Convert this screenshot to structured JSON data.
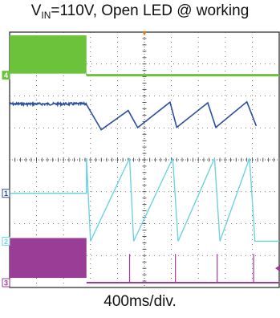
{
  "title": {
    "prefix": "V",
    "subscript": "IN",
    "rest": "=110V, Open LED @ working"
  },
  "chart_data": {
    "type": "line",
    "title": "VIN=110V, Open LED @ working",
    "xlabel": "400ms/div.",
    "x_divisions": 10,
    "y_divisions": 8,
    "grid": true,
    "background": "#ffffff",
    "events": [
      {
        "name": "open_led_time",
        "x_div": 2.85
      }
    ],
    "series": [
      {
        "channel": "4",
        "color": "#6cc23a",
        "before": {
          "low_div": 6.7,
          "high_div": 7.9
        },
        "after_level_div": 6.65
      },
      {
        "channel": "",
        "color": "#2b4f9e",
        "before_level_div": 5.75,
        "points": [
          [
            2.85,
            5.75
          ],
          [
            3.4,
            4.95
          ],
          [
            4.4,
            5.55
          ],
          [
            4.75,
            5.0
          ],
          [
            5.95,
            5.8
          ],
          [
            6.2,
            5.0
          ],
          [
            7.35,
            5.8
          ],
          [
            7.65,
            5.0
          ],
          [
            8.8,
            5.8
          ],
          [
            9.15,
            5.05
          ]
        ]
      },
      {
        "channel": "1",
        "color": "#6ed3df",
        "before_level_div": 2.95,
        "edges": [
          [
            2.85,
            0,
            4.05
          ],
          [
            3.0,
            4.05,
            1.45
          ],
          [
            4.45,
            1.45,
            4.05
          ],
          [
            4.6,
            4.05,
            1.45
          ],
          [
            6.05,
            1.45,
            4.05
          ],
          [
            6.25,
            4.05,
            1.45
          ],
          [
            7.6,
            1.45,
            4.05
          ],
          [
            7.8,
            4.05,
            1.45
          ],
          [
            8.9,
            1.45,
            4.05
          ],
          [
            9.1,
            4.05,
            1.45
          ]
        ],
        "low_after_div": 1.45
      },
      {
        "channel": "3",
        "color": "#9a3d97",
        "before": {
          "low_div": 0.3,
          "high_div": 1.55
        },
        "after_level_div": 0.15,
        "spikes_div": [
          4.45,
          6.15,
          7.7,
          9.05
        ]
      }
    ]
  },
  "footer": "400ms/div."
}
